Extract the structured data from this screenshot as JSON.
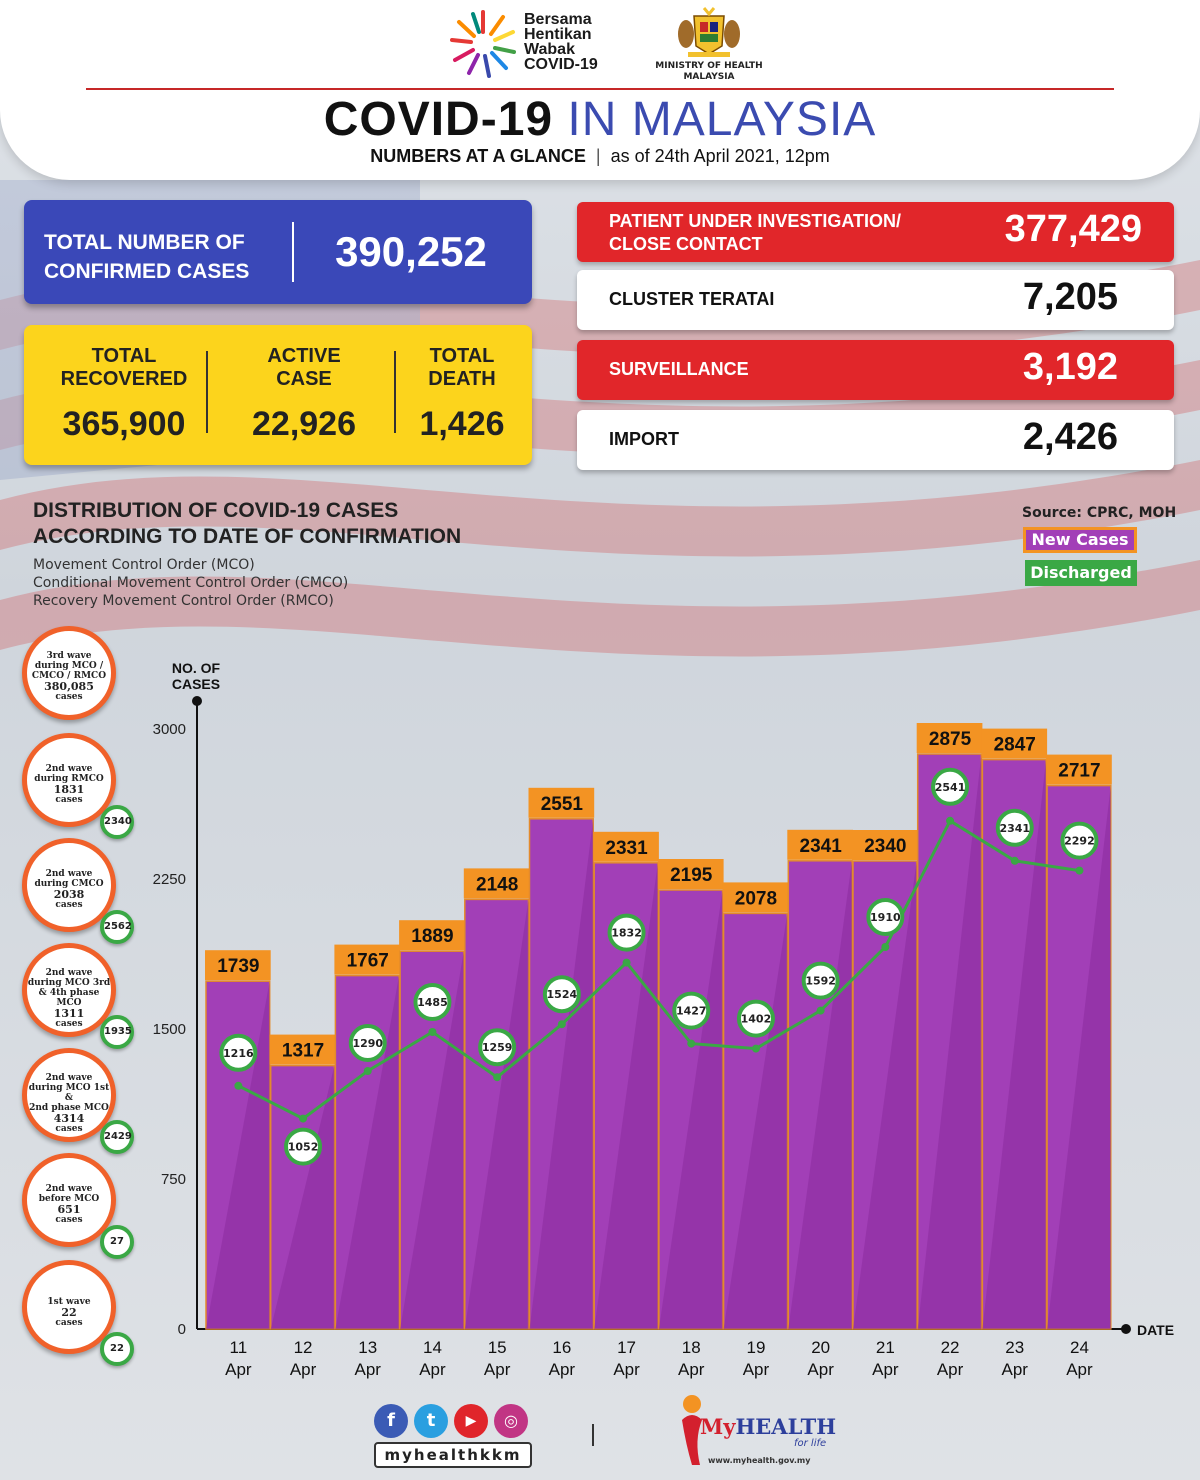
{
  "header": {
    "campaign_lines": [
      "Bersama",
      "Hentikan",
      "Wabak",
      "COVID-19"
    ],
    "ministry_lines": [
      "MINISTRY OF HEALTH",
      "MALAYSIA"
    ],
    "title_part1": "COVID-19",
    "title_part2": "IN MALAYSIA",
    "subtitle_bold": "NUMBERS AT A GLANCE",
    "subtitle_date": "as of 24th April 2021, 12pm"
  },
  "total": {
    "label_line1": "TOTAL NUMBER OF",
    "label_line2": "CONFIRMED CASES",
    "value": "390,252"
  },
  "summary": [
    {
      "label_line1": "TOTAL",
      "label_line2": "RECOVERED",
      "value": "365,900"
    },
    {
      "label_line1": "ACTIVE",
      "label_line2": "CASE",
      "value": "22,926"
    },
    {
      "label_line1": "TOTAL",
      "label_line2": "DEATH",
      "value": "1,426"
    }
  ],
  "stats": [
    {
      "label_line1": "PATIENT UNDER INVESTIGATION/",
      "label_line2": "CLOSE CONTACT",
      "value": "377,429",
      "style": "red"
    },
    {
      "label_line1": "CLUSTER TERATAI",
      "label_line2": "",
      "value": "7,205",
      "style": "white"
    },
    {
      "label_line1": "SURVEILLANCE",
      "label_line2": "",
      "value": "3,192",
      "style": "red"
    },
    {
      "label_line1": "IMPORT",
      "label_line2": "",
      "value": "2,426",
      "style": "white"
    }
  ],
  "distribution": {
    "title_line1": "DISTRIBUTION OF COVID-19 CASES",
    "title_line2": "ACCORDING TO DATE OF CONFIRMATION",
    "notes": [
      "Movement Control Order (MCO)",
      "Conditional Movement Control Order (CMCO)",
      "Recovery Movement Control Order (RMCO)"
    ],
    "source": "Source: CPRC, MOH",
    "legend_new": "New Cases",
    "legend_discharged": "Discharged"
  },
  "waves": [
    {
      "lines": [
        "3rd wave",
        "during MCO /",
        "CMCO / RMCO"
      ],
      "count": "380,085",
      "unit": "cases",
      "discharged": ""
    },
    {
      "lines": [
        "2nd wave",
        "during RMCO"
      ],
      "count": "1831",
      "unit": "cases",
      "discharged": "2340"
    },
    {
      "lines": [
        "2nd wave",
        "during CMCO"
      ],
      "count": "2038",
      "unit": "cases",
      "discharged": "2562"
    },
    {
      "lines": [
        "2nd wave",
        "during MCO 3rd",
        "& 4th phase MCO"
      ],
      "count": "1311",
      "unit": "cases",
      "discharged": "1935"
    },
    {
      "lines": [
        "2nd wave",
        "during MCO 1st &",
        "2nd phase MCO"
      ],
      "count": "4314",
      "unit": "cases",
      "discharged": "2429"
    },
    {
      "lines": [
        "2nd wave",
        "before MCO"
      ],
      "count": "651",
      "unit": "cases",
      "discharged": "27"
    },
    {
      "lines": [
        "1st wave"
      ],
      "count": "22",
      "unit": "cases",
      "discharged": "22"
    }
  ],
  "chart_data": {
    "type": "bar",
    "ylabel_line1": "NO. OF",
    "ylabel_line2": "CASES",
    "xlabel": "DATE",
    "ylim": [
      0,
      3000
    ],
    "yticks": [
      0,
      750,
      1500,
      2250,
      3000
    ],
    "categories": [
      {
        "day": "11",
        "month": "Apr"
      },
      {
        "day": "12",
        "month": "Apr"
      },
      {
        "day": "13",
        "month": "Apr"
      },
      {
        "day": "14",
        "month": "Apr"
      },
      {
        "day": "15",
        "month": "Apr"
      },
      {
        "day": "16",
        "month": "Apr"
      },
      {
        "day": "17",
        "month": "Apr"
      },
      {
        "day": "18",
        "month": "Apr"
      },
      {
        "day": "19",
        "month": "Apr"
      },
      {
        "day": "20",
        "month": "Apr"
      },
      {
        "day": "21",
        "month": "Apr"
      },
      {
        "day": "22",
        "month": "Apr"
      },
      {
        "day": "23",
        "month": "Apr"
      },
      {
        "day": "24",
        "month": "Apr"
      }
    ],
    "series": [
      {
        "name": "New Cases",
        "type": "bar",
        "color": "#a23fb7",
        "label_color": "#f39323",
        "values": [
          1739,
          1317,
          1767,
          1889,
          2148,
          2551,
          2331,
          2195,
          2078,
          2341,
          2340,
          2875,
          2847,
          2717
        ]
      },
      {
        "name": "Discharged",
        "type": "line",
        "color": "#3aa845",
        "values": [
          1216,
          1052,
          1290,
          1485,
          1259,
          1524,
          1832,
          1427,
          1402,
          1592,
          1910,
          2541,
          2341,
          2292
        ]
      }
    ]
  },
  "footer": {
    "social_handle": "myhealthkkm",
    "social_icons": [
      "facebook-icon",
      "twitter-icon",
      "youtube-icon",
      "instagram-icon"
    ],
    "myhealth_brand_m": "My",
    "myhealth_brand_rest": "HEALTH",
    "myhealth_tag": "for life",
    "myhealth_url": "www.myhealth.gov.my"
  }
}
